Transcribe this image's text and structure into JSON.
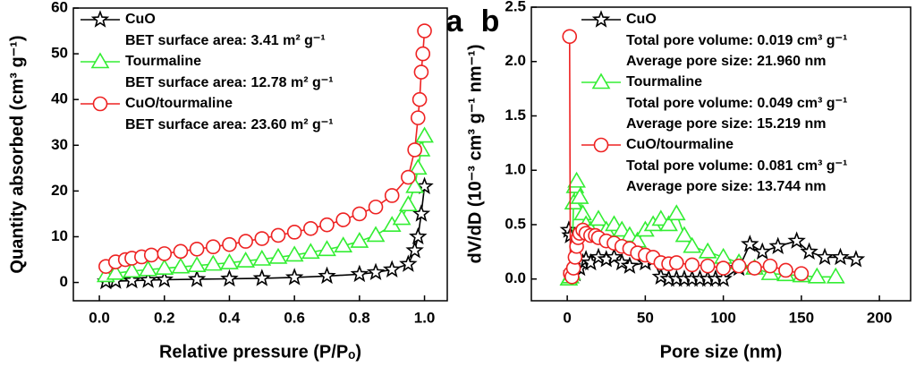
{
  "chart_data": [
    {
      "type": "line",
      "panel_label": "a",
      "x_label": "Relative pressure (P/Pₒ)",
      "y_label": "Quantity absorbed (cm³ g⁻¹)",
      "xlim": [
        -0.08,
        1.07
      ],
      "ylim": [
        -4,
        60
      ],
      "xticks": [
        {
          "value": 0,
          "label": "0.0"
        },
        0.2,
        0.4,
        0.6,
        0.8,
        {
          "value": 1,
          "label": "1.0"
        }
      ],
      "yticks": [
        0,
        10,
        20,
        30,
        40,
        50,
        60
      ],
      "legend": "upper left",
      "series": [
        {
          "name": "CuO",
          "color": "#000000",
          "marker": "star",
          "notes": [
            "BET surface area: 3.41 m² g⁻¹"
          ],
          "x": [
            0.02,
            0.05,
            0.1,
            0.15,
            0.2,
            0.3,
            0.4,
            0.5,
            0.6,
            0.7,
            0.8,
            0.85,
            0.9,
            0.95,
            0.97,
            0.98,
            0.99,
            1.0
          ],
          "values": [
            0.2,
            0.3,
            0.4,
            0.5,
            0.6,
            0.7,
            0.8,
            0.9,
            1.1,
            1.4,
            1.8,
            2.2,
            2.8,
            4,
            7,
            10,
            15,
            21
          ]
        },
        {
          "name": "Tourmaline",
          "color": "#33ee33",
          "marker": "triangle",
          "notes": [
            "BET surface area: 12.78 m² g⁻¹"
          ],
          "x": [
            0.02,
            0.05,
            0.1,
            0.15,
            0.2,
            0.25,
            0.3,
            0.35,
            0.4,
            0.45,
            0.5,
            0.55,
            0.6,
            0.65,
            0.7,
            0.75,
            0.8,
            0.85,
            0.9,
            0.93,
            0.95,
            0.97,
            0.98,
            0.99,
            1.0
          ],
          "values": [
            1.5,
            2,
            2.5,
            2.8,
            3.1,
            3.4,
            3.7,
            4,
            4.3,
            4.7,
            5.1,
            5.5,
            6,
            6.6,
            7.2,
            8,
            9,
            10.3,
            12.5,
            14,
            17,
            21,
            25,
            29,
            32
          ]
        },
        {
          "name": "CuO/tourmaline",
          "color": "#ee2222",
          "marker": "circle",
          "notes": [
            "BET surface area: 23.60 m² g⁻¹"
          ],
          "x": [
            0.02,
            0.05,
            0.08,
            0.1,
            0.13,
            0.16,
            0.2,
            0.25,
            0.3,
            0.35,
            0.4,
            0.45,
            0.5,
            0.55,
            0.6,
            0.65,
            0.7,
            0.75,
            0.8,
            0.85,
            0.9,
            0.95,
            0.97,
            0.98,
            0.985,
            0.99,
            0.995,
            1.0
          ],
          "values": [
            3.5,
            4.5,
            5,
            5.3,
            5.6,
            6,
            6.3,
            6.8,
            7.3,
            7.8,
            8.3,
            9,
            9.6,
            10.3,
            11,
            11.8,
            12.6,
            13.7,
            15,
            16.5,
            19,
            23,
            29,
            36,
            40,
            46,
            50,
            55
          ]
        }
      ]
    },
    {
      "type": "line",
      "panel_label": "b",
      "x_label": "Pore size (nm)",
      "y_label": "dV/dD (10⁻³ cm³ g⁻¹ nm⁻¹)",
      "xlim": [
        -23,
        220
      ],
      "ylim": [
        -0.2,
        2.5
      ],
      "xticks": [
        0,
        50,
        100,
        150,
        200
      ],
      "yticks": [
        {
          "value": 0,
          "label": "0.0"
        },
        0.5,
        {
          "value": 1,
          "label": "1.0"
        },
        1.5,
        {
          "value": 2,
          "label": "2.0"
        },
        2.5
      ],
      "legend": "upper left",
      "series": [
        {
          "name": "CuO",
          "color": "#000000",
          "marker": "star",
          "notes": [
            "Total pore volume: 0.019 cm³ g⁻¹",
            "Average pore size: 21.960 nm"
          ],
          "x": [
            1,
            2,
            3,
            5,
            8,
            10,
            12,
            15,
            20,
            25,
            30,
            35,
            40,
            50,
            55,
            60,
            65,
            70,
            75,
            80,
            85,
            90,
            95,
            100,
            110,
            117,
            125,
            135,
            147,
            155,
            165,
            175,
            185
          ],
          "values": [
            0.45,
            0.4,
            0.05,
            0.05,
            0.1,
            0.15,
            0.18,
            0.15,
            0.2,
            0.18,
            0.2,
            0.15,
            0.12,
            0.15,
            0.18,
            0.02,
            0,
            0,
            0,
            0,
            0,
            0,
            0,
            0,
            0.1,
            0.32,
            0.25,
            0.3,
            0.35,
            0.25,
            0.2,
            0.2,
            0.18
          ]
        },
        {
          "name": "Tourmaline",
          "color": "#33ee33",
          "marker": "triangle",
          "notes": [
            "Total pore volume: 0.049 cm³ g⁻¹",
            "Average pore size: 15.219 nm"
          ],
          "x": [
            1,
            2,
            3,
            4,
            5,
            6,
            8,
            10,
            12,
            15,
            20,
            25,
            30,
            35,
            40,
            45,
            50,
            55,
            60,
            65,
            70,
            75,
            80,
            90,
            100,
            110,
            120,
            130,
            140,
            150,
            160,
            172
          ],
          "values": [
            0,
            0.02,
            0.05,
            0.7,
            0.85,
            0.9,
            0.75,
            0.6,
            0.5,
            0.45,
            0.55,
            0.45,
            0.5,
            0.45,
            0.4,
            0.35,
            0.45,
            0.5,
            0.55,
            0.5,
            0.6,
            0.4,
            0.3,
            0.25,
            0.2,
            0.15,
            0.1,
            0.05,
            0.04,
            0.03,
            0.02,
            0.02
          ]
        },
        {
          "name": "CuO/tourmaline",
          "color": "#ee2222",
          "marker": "circle",
          "notes": [
            "Total pore volume: 0.081 cm³ g⁻¹",
            "Average pore size: 13.744 nm"
          ],
          "x": [
            1.5,
            2,
            3,
            4,
            5,
            6,
            7,
            8,
            10,
            12,
            15,
            18,
            20,
            25,
            30,
            35,
            40,
            45,
            50,
            55,
            60,
            65,
            70,
            80,
            90,
            100,
            110,
            120,
            130,
            140,
            150
          ],
          "values": [
            2.23,
            0.05,
            0.02,
            0.1,
            0.2,
            0.3,
            0.38,
            0.42,
            0.45,
            0.42,
            0.4,
            0.4,
            0.38,
            0.35,
            0.33,
            0.3,
            0.28,
            0.24,
            0.22,
            0.2,
            0.15,
            0.14,
            0.15,
            0.13,
            0.12,
            0.1,
            0.12,
            0.1,
            0.12,
            0.08,
            0.05
          ]
        }
      ]
    }
  ]
}
